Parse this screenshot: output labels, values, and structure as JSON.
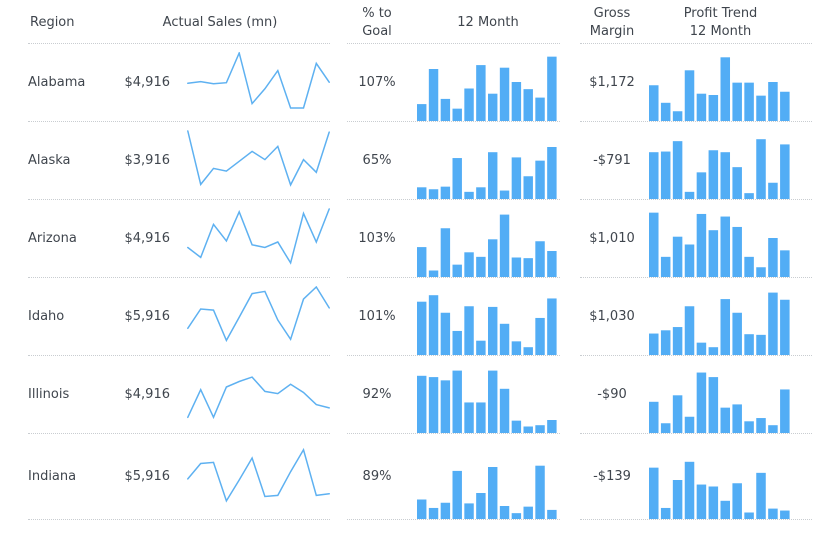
{
  "header": {
    "region": "Region",
    "actual_sales": "Actual Sales (mn)",
    "pct_to_goal": "% to\nGoal",
    "twelve_month": "12 Month",
    "gross_margin": "Gross\nMargin",
    "profit_trend": "Profit Trend\n12 Month"
  },
  "colors": {
    "bar": "#52ADF5",
    "line": "#5EB1F1",
    "text": "#3F454D",
    "separator": "#c9cdd1",
    "background": "#ffffff"
  },
  "chart_data": {
    "type": "table",
    "columns": [
      "Region",
      "Actual Sales (mn)",
      "% to Goal",
      "12 Month",
      "Gross Margin",
      "Profit Trend 12 Month"
    ],
    "sparkline_value_scale": "0-1 normalized (no axes or tick labels shown)",
    "sparkline_points_per_series": 12,
    "rows": [
      {
        "region": "Alabama",
        "actual_sales_mn": "$4,916",
        "sales_trend_line": [
          0.45,
          0.48,
          0.44,
          0.46,
          1.0,
          0.08,
          0.35,
          0.68,
          0.0,
          0.0,
          0.81,
          0.47
        ],
        "pct_to_goal": "107%",
        "twelve_month_bars": [
          0.26,
          0.8,
          0.34,
          0.19,
          0.5,
          0.86,
          0.42,
          0.82,
          0.6,
          0.49,
          0.36,
          0.99
        ],
        "gross_margin": "$1,172",
        "profit_trend_bars": [
          0.55,
          0.28,
          0.15,
          0.78,
          0.42,
          0.4,
          0.98,
          0.59,
          0.59,
          0.39,
          0.6,
          0.45
        ]
      },
      {
        "region": "Alaska",
        "actual_sales_mn": "$3,916",
        "sales_trend_line": [
          1.0,
          0.03,
          0.32,
          0.27,
          0.45,
          0.63,
          0.48,
          0.72,
          0.02,
          0.48,
          0.25,
          0.98
        ],
        "pct_to_goal": "65%",
        "twelve_month_bars": [
          0.18,
          0.15,
          0.19,
          0.63,
          0.11,
          0.18,
          0.72,
          0.13,
          0.64,
          0.35,
          0.59,
          0.8
        ],
        "gross_margin": "-$791",
        "profit_trend_bars": [
          0.72,
          0.73,
          0.89,
          0.11,
          0.41,
          0.75,
          0.72,
          0.49,
          0.09,
          0.92,
          0.25,
          0.84
        ]
      },
      {
        "region": "Arizona",
        "actual_sales_mn": "$4,916",
        "sales_trend_line": [
          0.3,
          0.12,
          0.72,
          0.42,
          0.95,
          0.35,
          0.3,
          0.4,
          0.02,
          0.92,
          0.4,
          1.0
        ],
        "pct_to_goal": "103%",
        "twelve_month_bars": [
          0.46,
          0.1,
          0.75,
          0.19,
          0.38,
          0.31,
          0.58,
          0.96,
          0.3,
          0.29,
          0.55,
          0.4
        ],
        "gross_margin": "$1,010",
        "profit_trend_bars": [
          0.99,
          0.31,
          0.62,
          0.5,
          0.97,
          0.72,
          0.93,
          0.77,
          0.31,
          0.15,
          0.6,
          0.41
        ]
      },
      {
        "region": "Idaho",
        "actual_sales_mn": "$5,916",
        "sales_trend_line": [
          0.25,
          0.6,
          0.58,
          0.03,
          0.45,
          0.88,
          0.92,
          0.4,
          0.05,
          0.78,
          1.0,
          0.62
        ],
        "pct_to_goal": "101%",
        "twelve_month_bars": [
          0.82,
          0.92,
          0.65,
          0.37,
          0.75,
          0.22,
          0.74,
          0.48,
          0.21,
          0.12,
          0.57,
          0.87
        ],
        "gross_margin": "$1,030",
        "profit_trend_bars": [
          0.33,
          0.38,
          0.43,
          0.75,
          0.19,
          0.12,
          0.86,
          0.65,
          0.32,
          0.31,
          0.96,
          0.85
        ]
      },
      {
        "region": "Illinois",
        "actual_sales_mn": "$4,916",
        "sales_trend_line": [
          0.05,
          0.55,
          0.05,
          0.6,
          0.7,
          0.78,
          0.52,
          0.48,
          0.65,
          0.5,
          0.28,
          0.22
        ],
        "pct_to_goal": "92%",
        "twelve_month_bars": [
          0.88,
          0.86,
          0.81,
          0.96,
          0.47,
          0.47,
          0.96,
          0.68,
          0.19,
          0.1,
          0.12,
          0.2
        ],
        "gross_margin": "-$90",
        "profit_trend_bars": [
          0.48,
          0.15,
          0.58,
          0.25,
          0.93,
          0.86,
          0.39,
          0.44,
          0.18,
          0.23,
          0.12,
          0.67
        ]
      },
      {
        "region": "Indiana",
        "actual_sales_mn": "$5,916",
        "sales_trend_line": [
          0.42,
          0.7,
          0.72,
          0.02,
          0.4,
          0.8,
          0.1,
          0.12,
          0.55,
          0.95,
          0.12,
          0.15
        ],
        "pct_to_goal": "89%",
        "twelve_month_bars": [
          0.3,
          0.17,
          0.25,
          0.74,
          0.24,
          0.4,
          0.8,
          0.2,
          0.09,
          0.19,
          0.82,
          0.14
        ],
        "gross_margin": "-$139",
        "profit_trend_bars": [
          0.79,
          0.17,
          0.6,
          0.88,
          0.53,
          0.5,
          0.28,
          0.55,
          0.1,
          0.71,
          0.16,
          0.13
        ]
      }
    ]
  }
}
